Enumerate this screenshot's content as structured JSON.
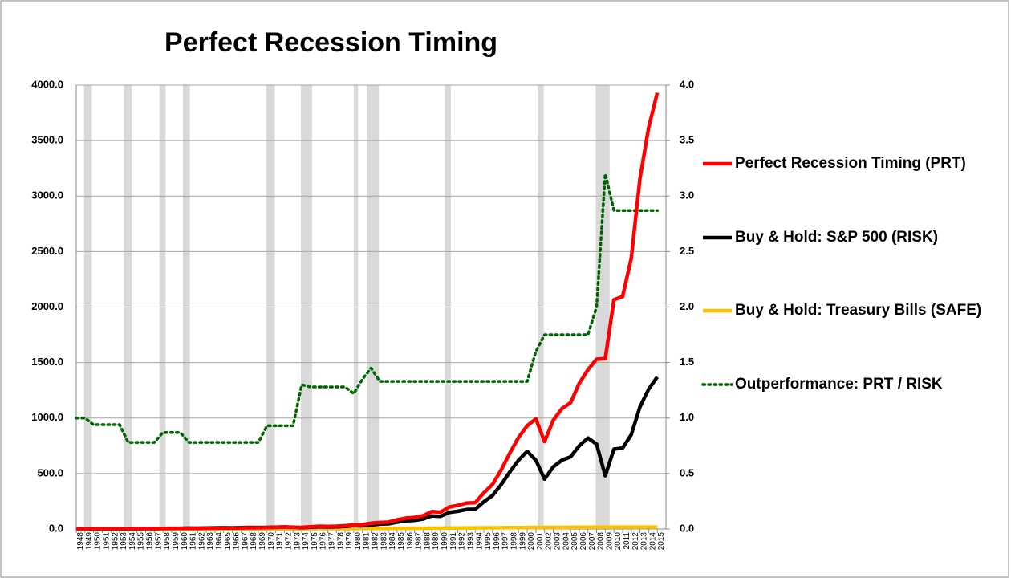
{
  "chart_data": {
    "type": "line",
    "title": "Perfect Recession Timing",
    "x": [
      1948,
      1949,
      1950,
      1951,
      1952,
      1953,
      1954,
      1955,
      1956,
      1957,
      1958,
      1959,
      1960,
      1961,
      1962,
      1963,
      1964,
      1965,
      1966,
      1967,
      1968,
      1969,
      1970,
      1971,
      1972,
      1973,
      1974,
      1975,
      1976,
      1977,
      1978,
      1979,
      1980,
      1981,
      1982,
      1983,
      1984,
      1985,
      1986,
      1987,
      1988,
      1989,
      1990,
      1991,
      1992,
      1993,
      1994,
      1995,
      1996,
      1997,
      1998,
      1999,
      2000,
      2001,
      2002,
      2003,
      2004,
      2005,
      2006,
      2007,
      2008,
      2009,
      2010,
      2011,
      2012,
      2013,
      2014,
      2015
    ],
    "xlim": [
      1948,
      2016
    ],
    "xticks": [
      1948,
      1949,
      1950,
      1951,
      1952,
      1953,
      1954,
      1955,
      1956,
      1957,
      1958,
      1959,
      1960,
      1961,
      1962,
      1963,
      1964,
      1965,
      1966,
      1967,
      1968,
      1969,
      1970,
      1971,
      1972,
      1973,
      1974,
      1975,
      1976,
      1977,
      1978,
      1979,
      1980,
      1981,
      1982,
      1983,
      1984,
      1985,
      1986,
      1987,
      1988,
      1989,
      1990,
      1991,
      1992,
      1993,
      1994,
      1995,
      1996,
      1997,
      1998,
      1999,
      2000,
      2001,
      2002,
      2003,
      2004,
      2005,
      2006,
      2007,
      2008,
      2009,
      2010,
      2011,
      2012,
      2013,
      2014,
      2015
    ],
    "ylim": [
      0,
      4000
    ],
    "yticks": [
      {
        "value": 0,
        "label": "0.0"
      },
      {
        "value": 500,
        "label": "500.0"
      },
      {
        "value": 1000,
        "label": "1000.0"
      },
      {
        "value": 1500,
        "label": "1500.0"
      },
      {
        "value": 2000,
        "label": "2000.0"
      },
      {
        "value": 2500,
        "label": "2500.0"
      },
      {
        "value": 3000,
        "label": "3000.0"
      },
      {
        "value": 3500,
        "label": "3500.0"
      },
      {
        "value": 4000,
        "label": "4000.0"
      }
    ],
    "y2lim": [
      0,
      4
    ],
    "y2ticks": [
      {
        "value": 0,
        "label": "0.0"
      },
      {
        "value": 0.5,
        "label": "0.5"
      },
      {
        "value": 1,
        "label": "1.0"
      },
      {
        "value": 1.5,
        "label": "1.5"
      },
      {
        "value": 2,
        "label": "2.0"
      },
      {
        "value": 2.5,
        "label": "2.5"
      },
      {
        "value": 3,
        "label": "3.0"
      },
      {
        "value": 3.5,
        "label": "3.5"
      },
      {
        "value": 4,
        "label": "4.0"
      }
    ],
    "grid": true,
    "recessions": [
      [
        1948.9,
        1949.8
      ],
      [
        1953.5,
        1954.4
      ],
      [
        1957.6,
        1958.3
      ],
      [
        1960.3,
        1961.1
      ],
      [
        1969.9,
        1970.9
      ],
      [
        1973.9,
        1975.2
      ],
      [
        1980.0,
        1980.5
      ],
      [
        1981.5,
        1982.9
      ],
      [
        1990.5,
        1991.2
      ],
      [
        2001.2,
        2001.9
      ],
      [
        2007.9,
        2009.5
      ]
    ],
    "recession_color": "#d9d9d9",
    "series": [
      {
        "name": "Perfect Recession Timing (PRT)",
        "color": "#ff0000",
        "style": "solid",
        "values": [
          1,
          1.1,
          1.3,
          1.6,
          1.9,
          2,
          2.3,
          3.1,
          3.4,
          3.1,
          4.8,
          5.5,
          5.7,
          6.2,
          5.9,
          7,
          8.2,
          9.4,
          8.6,
          10.1,
          11.3,
          10.5,
          13,
          14.9,
          17.7,
          14.9,
          15.6,
          20.5,
          25.6,
          23.7,
          25.6,
          30.1,
          37.8,
          39.2,
          52.2,
          58.5,
          62.5,
          82.5,
          98.4,
          104,
          120,
          157,
          152,
          198,
          213,
          234,
          237,
          326,
          402,
          532,
          685,
          825,
          931,
          992,
          788,
          980,
          1085,
          1138,
          1313,
          1435,
          1530,
          1536,
          2066,
          2095,
          2440,
          3157,
          3616,
          3932
        ]
      },
      {
        "name": "Buy & Hold: S&P 500 (RISK)",
        "color": "#000000",
        "style": "solid",
        "values": [
          1,
          1.1,
          1.4,
          1.7,
          2,
          2.1,
          3,
          4,
          4.3,
          4,
          5.5,
          6.3,
          6.5,
          8,
          7.5,
          9,
          10.5,
          12,
          11,
          13,
          14.5,
          13.5,
          14,
          16,
          19,
          16,
          12,
          16,
          20,
          18.5,
          20,
          23.5,
          31,
          29,
          36,
          44,
          47,
          62,
          74,
          78,
          90,
          118,
          114,
          149,
          160,
          176,
          178,
          245,
          302,
          400,
          515,
          620,
          700,
          620,
          450,
          560,
          620,
          650,
          750,
          820,
          765,
          480,
          720,
          730,
          850,
          1100,
          1260,
          1370
        ]
      },
      {
        "name": "Buy & Hold: Treasury Bills (SAFE)",
        "color": "#ffc000",
        "style": "solid",
        "values": [
          1,
          1.01,
          1.02,
          1.04,
          1.06,
          1.08,
          1.09,
          1.11,
          1.14,
          1.18,
          1.2,
          1.24,
          1.27,
          1.3,
          1.33,
          1.37,
          1.42,
          1.47,
          1.54,
          1.61,
          1.69,
          1.8,
          1.92,
          2,
          2.1,
          2.25,
          2.43,
          2.57,
          2.7,
          2.84,
          3.05,
          3.35,
          3.75,
          4.3,
          4.75,
          5.2,
          5.7,
          6.1,
          6.5,
          6.8,
          7.3,
          7.9,
          8.5,
          9,
          9.3,
          9.6,
          10,
          10.6,
          11.1,
          11.7,
          12.3,
          12.9,
          13.6,
          14.1,
          14.3,
          14.5,
          14.7,
          15.2,
          15.9,
          16.6,
          16.9,
          17,
          17,
          17,
          17,
          17,
          17,
          17
        ]
      },
      {
        "name": "Outperformance: PRT / RISK",
        "color": "#006400",
        "style": "dotted",
        "axis": "y2",
        "values": [
          1,
          1,
          0.94,
          0.94,
          0.94,
          0.94,
          0.78,
          0.78,
          0.78,
          0.78,
          0.87,
          0.87,
          0.87,
          0.78,
          0.78,
          0.78,
          0.78,
          0.78,
          0.78,
          0.78,
          0.78,
          0.78,
          0.93,
          0.93,
          0.93,
          0.93,
          1.3,
          1.28,
          1.28,
          1.28,
          1.28,
          1.28,
          1.22,
          1.35,
          1.45,
          1.33,
          1.33,
          1.33,
          1.33,
          1.33,
          1.33,
          1.33,
          1.33,
          1.33,
          1.33,
          1.33,
          1.33,
          1.33,
          1.33,
          1.33,
          1.33,
          1.33,
          1.33,
          1.6,
          1.75,
          1.75,
          1.75,
          1.75,
          1.75,
          1.75,
          2,
          3.2,
          2.87,
          2.87,
          2.87,
          2.87,
          2.87,
          2.87
        ]
      }
    ]
  }
}
